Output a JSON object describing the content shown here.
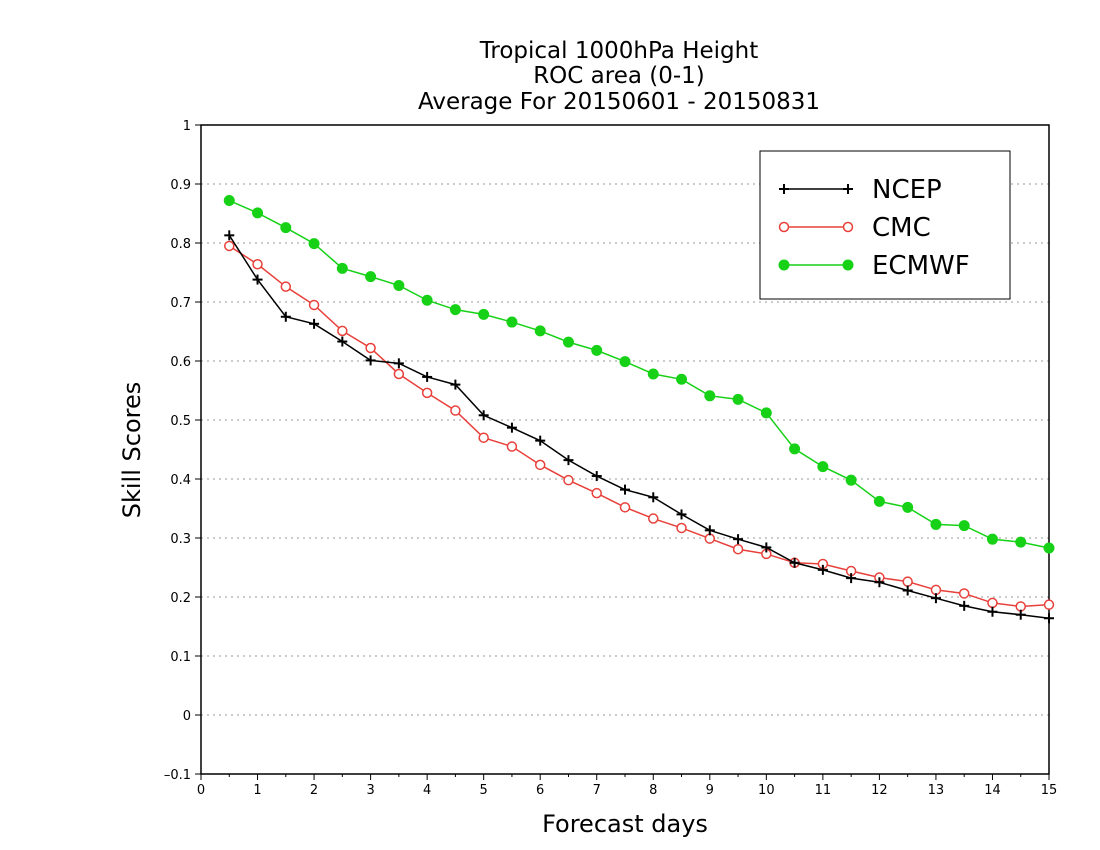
{
  "chart_data": {
    "type": "line",
    "title_lines": [
      "Tropical 1000hPa Height",
      "ROC area (0-1)",
      "Average For 20150601 - 20150831"
    ],
    "xlabel": "Forecast days",
    "ylabel": "Skill Scores",
    "xlim": [
      0,
      15
    ],
    "ylim": [
      -0.1,
      1
    ],
    "xticks": [
      "0",
      "1",
      "2",
      "3",
      "4",
      "5",
      "6",
      "7",
      "8",
      "9",
      "10",
      "11",
      "12",
      "13",
      "14",
      "15"
    ],
    "yticks": [
      "–0.1",
      "0",
      "0.1",
      "0.2",
      "0.3",
      "0.4",
      "0.5",
      "0.6",
      "0.7",
      "0.8",
      "0.9",
      "1"
    ],
    "grid": "horizontal dotted",
    "legend_position": "top-right",
    "x": [
      0.5,
      1,
      1.5,
      2,
      2.5,
      3,
      3.5,
      4,
      4.5,
      5,
      5.5,
      6,
      6.5,
      7,
      7.5,
      8,
      8.5,
      9,
      9.5,
      10,
      10.5,
      11,
      11.5,
      12,
      12.5,
      13,
      13.5,
      14,
      14.5,
      15
    ],
    "series": [
      {
        "name": "NCEP",
        "color": "#000000",
        "marker": "plus",
        "values": [
          0.813,
          0.738,
          0.675,
          0.663,
          0.633,
          0.601,
          0.596,
          0.573,
          0.56,
          0.508,
          0.487,
          0.465,
          0.432,
          0.405,
          0.382,
          0.369,
          0.34,
          0.313,
          0.298,
          0.284,
          0.258,
          0.246,
          0.232,
          0.225,
          0.211,
          0.198,
          0.185,
          0.175,
          0.17,
          0.164
        ]
      },
      {
        "name": "CMC",
        "color": "#e8403a",
        "marker": "open-circle",
        "values": [
          0.795,
          0.764,
          0.726,
          0.695,
          0.651,
          0.622,
          0.578,
          0.546,
          0.516,
          0.47,
          0.455,
          0.424,
          0.398,
          0.376,
          0.352,
          0.333,
          0.317,
          0.299,
          0.281,
          0.273,
          0.258,
          0.256,
          0.244,
          0.233,
          0.226,
          0.212,
          0.206,
          0.19,
          0.184,
          0.187
        ]
      },
      {
        "name": "ECMWF",
        "color": "#16d116",
        "marker": "filled-circle",
        "values": [
          0.872,
          0.851,
          0.826,
          0.799,
          0.757,
          0.743,
          0.728,
          0.703,
          0.687,
          0.679,
          0.666,
          0.651,
          0.632,
          0.618,
          0.599,
          0.578,
          0.569,
          0.541,
          0.535,
          0.512,
          0.451,
          0.421,
          0.398,
          0.362,
          0.352,
          0.323,
          0.321,
          0.298,
          0.293,
          0.283
        ]
      }
    ]
  }
}
